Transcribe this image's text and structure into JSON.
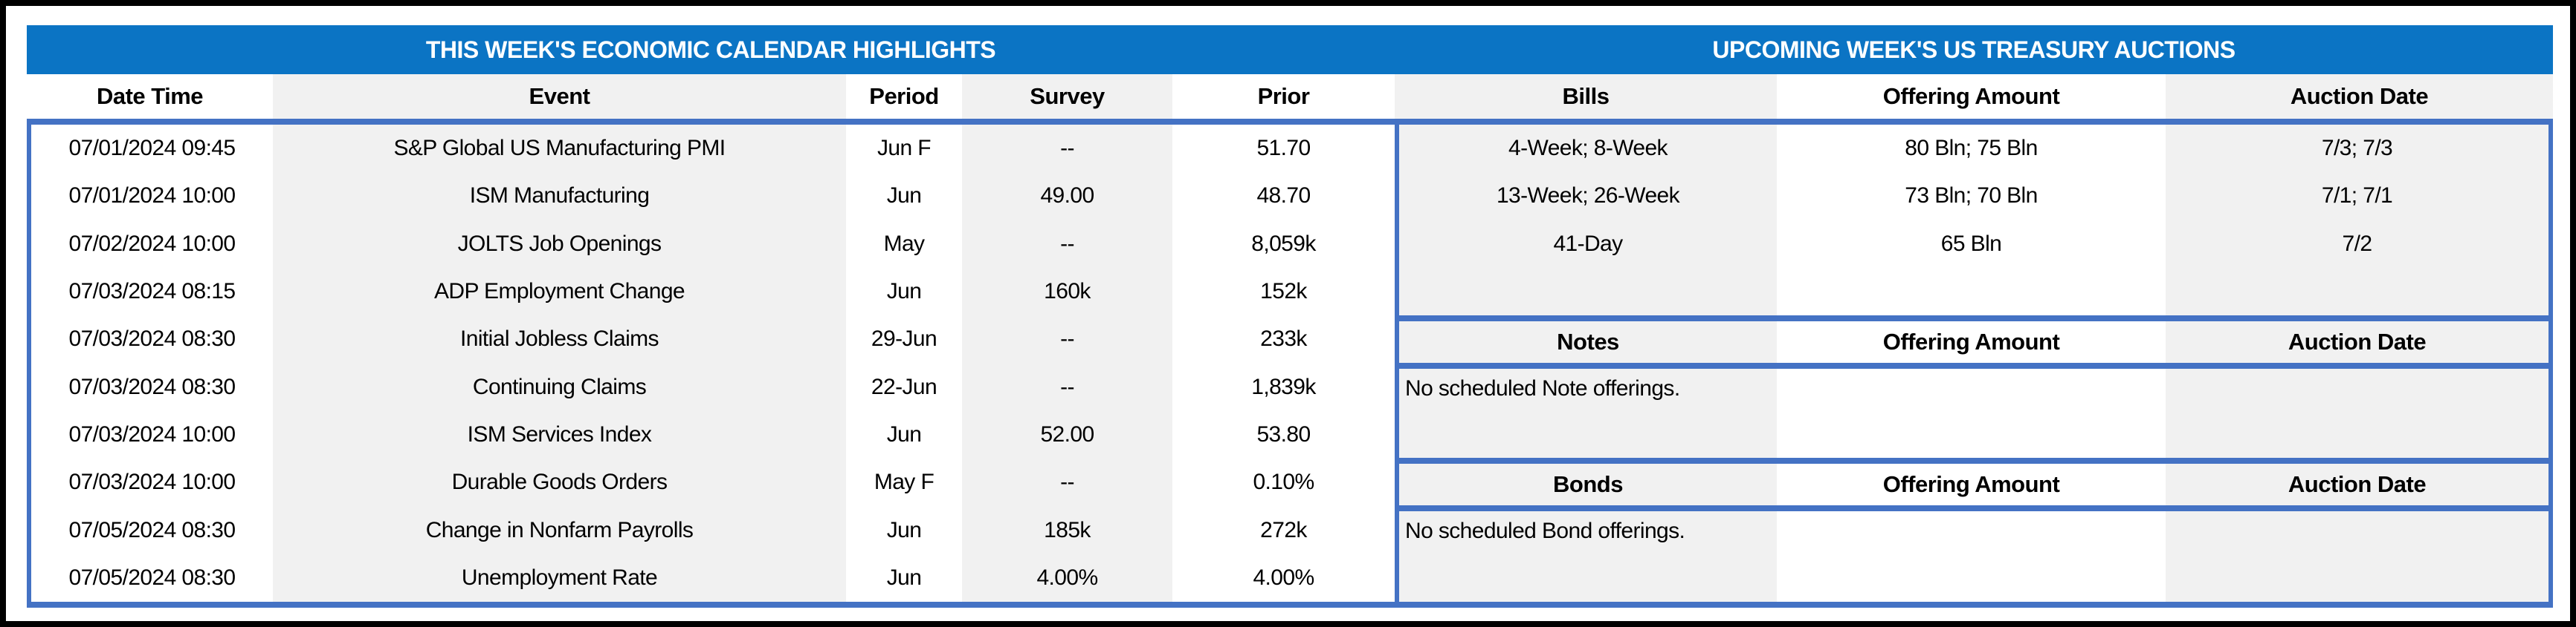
{
  "colors": {
    "header_band": "#0B74C4",
    "border_blue": "#4472C4",
    "stripe_grey": "#F1F1F1",
    "band_text": "#FFFFFF",
    "text": "#000000"
  },
  "left": {
    "title": "THIS WEEK'S ECONOMIC CALENDAR HIGHLIGHTS",
    "headers": [
      "Date Time",
      "Event",
      "Period",
      "Survey",
      "Prior"
    ],
    "rows": [
      [
        "07/01/2024 09:45",
        "S&P Global US Manufacturing PMI",
        "Jun F",
        "--",
        "51.70"
      ],
      [
        "07/01/2024 10:00",
        "ISM Manufacturing",
        "Jun",
        "49.00",
        "48.70"
      ],
      [
        "07/02/2024 10:00",
        "JOLTS Job Openings",
        "May",
        "--",
        "8,059k"
      ],
      [
        "07/03/2024 08:15",
        "ADP Employment Change",
        "Jun",
        "160k",
        "152k"
      ],
      [
        "07/03/2024 08:30",
        "Initial Jobless Claims",
        "29-Jun",
        "--",
        "233k"
      ],
      [
        "07/03/2024 08:30",
        "Continuing Claims",
        "22-Jun",
        "--",
        "1,839k"
      ],
      [
        "07/03/2024 10:00",
        "ISM Services Index",
        "Jun",
        "52.00",
        "53.80"
      ],
      [
        "07/03/2024 10:00",
        "Durable Goods Orders",
        "May F",
        "--",
        "0.10%"
      ],
      [
        "07/05/2024 08:30",
        "Change in Nonfarm Payrolls",
        "Jun",
        "185k",
        "272k"
      ],
      [
        "07/05/2024 08:30",
        "Unemployment Rate",
        "Jun",
        "4.00%",
        "4.00%"
      ]
    ]
  },
  "right": {
    "title": "UPCOMING WEEK'S US TREASURY AUCTIONS",
    "bills": {
      "headers": [
        "Bills",
        "Offering Amount",
        "Auction Date"
      ],
      "rows": [
        [
          "4-Week; 8-Week",
          "80 Bln; 75 Bln",
          "7/3; 7/3"
        ],
        [
          "13-Week; 26-Week",
          "73 Bln; 70 Bln",
          "7/1; 7/1"
        ],
        [
          "41-Day",
          "65 Bln",
          "7/2"
        ]
      ]
    },
    "notes": {
      "headers": [
        "Notes",
        "Offering Amount",
        "Auction Date"
      ],
      "message": "No scheduled Note offerings."
    },
    "bonds": {
      "headers": [
        "Bonds",
        "Offering Amount",
        "Auction Date"
      ],
      "message": "No scheduled Bond offerings."
    }
  }
}
